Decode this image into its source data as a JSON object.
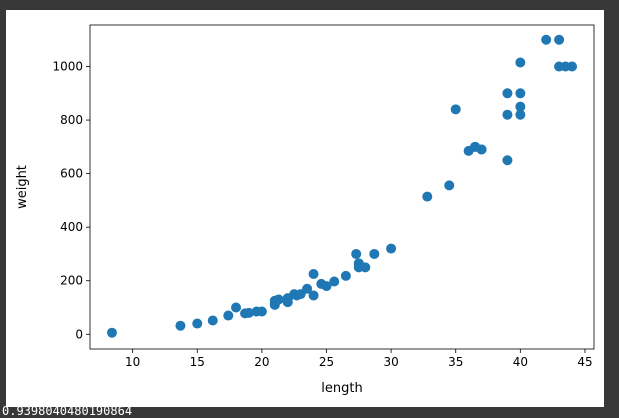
{
  "trailing_output": "0.9398040480190864",
  "chart_data": {
    "type": "scatter",
    "xlabel": "length",
    "ylabel": "weight",
    "xlim": [
      6.7,
      45.7
    ],
    "ylim": [
      -55,
      1155
    ],
    "xticks": [
      10,
      15,
      20,
      25,
      30,
      35,
      40,
      45
    ],
    "yticks": [
      0,
      200,
      400,
      600,
      800,
      1000
    ],
    "grid": false,
    "marker_color": "#1f77b4",
    "points": [
      [
        8.4,
        5.9
      ],
      [
        13.7,
        32
      ],
      [
        15.0,
        40
      ],
      [
        16.2,
        51.5
      ],
      [
        17.4,
        70
      ],
      [
        18.0,
        100
      ],
      [
        18.7,
        78
      ],
      [
        19.0,
        80
      ],
      [
        19.6,
        85
      ],
      [
        20.0,
        85
      ],
      [
        21.0,
        110
      ],
      [
        21.0,
        115
      ],
      [
        21.0,
        125
      ],
      [
        21.3,
        130
      ],
      [
        22.0,
        120
      ],
      [
        22.0,
        120
      ],
      [
        22.0,
        130
      ],
      [
        22.0,
        135
      ],
      [
        22.0,
        130
      ],
      [
        22.5,
        150
      ],
      [
        22.7,
        145
      ],
      [
        23.0,
        150
      ],
      [
        23.5,
        170
      ],
      [
        24.0,
        225
      ],
      [
        24.0,
        145
      ],
      [
        24.6,
        188
      ],
      [
        25.0,
        180
      ],
      [
        25.6,
        197
      ],
      [
        26.5,
        218
      ],
      [
        27.3,
        300
      ],
      [
        27.5,
        260
      ],
      [
        27.5,
        265
      ],
      [
        27.5,
        250
      ],
      [
        28.0,
        250
      ],
      [
        28.7,
        300
      ],
      [
        30.0,
        320
      ],
      [
        32.8,
        514
      ],
      [
        34.5,
        556
      ],
      [
        35.0,
        840
      ],
      [
        36.0,
        685
      ],
      [
        36.5,
        700
      ],
      [
        36.5,
        700
      ],
      [
        37.0,
        690
      ],
      [
        37.0,
        690
      ],
      [
        39.0,
        650
      ],
      [
        39.0,
        820
      ],
      [
        39.0,
        900
      ],
      [
        40.0,
        850
      ],
      [
        40.0,
        900
      ],
      [
        40.0,
        1015
      ],
      [
        40.0,
        820
      ],
      [
        42.0,
        1100
      ],
      [
        43.0,
        1000
      ],
      [
        43.0,
        1100
      ],
      [
        43.5,
        1000
      ],
      [
        44.0,
        1000
      ]
    ]
  }
}
